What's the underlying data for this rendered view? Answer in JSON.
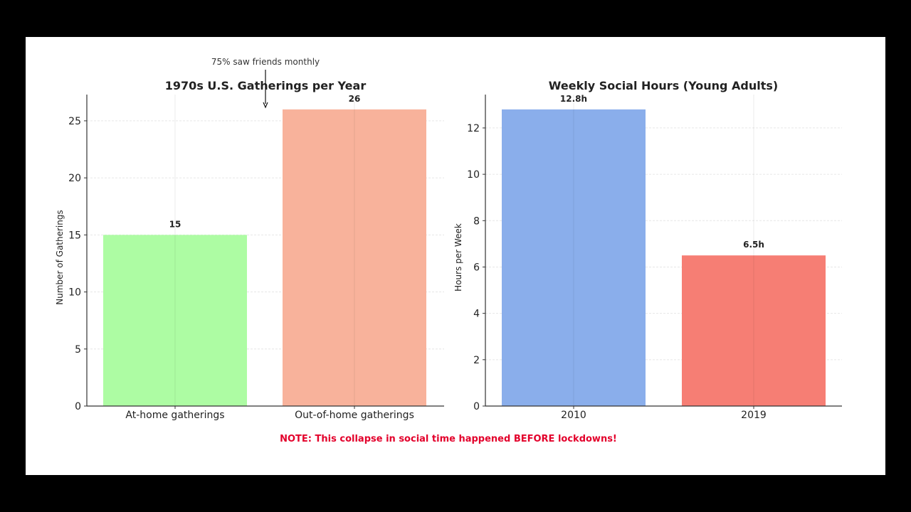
{
  "footer": {
    "note": "NOTE: This collapse in social time happened BEFORE lockdowns!",
    "note_color": "#e3002b"
  },
  "chart_data": [
    {
      "type": "bar",
      "title": "1970s U.S. Gatherings per Year",
      "xlabel": "",
      "ylabel": "Number of Gatherings",
      "categories": [
        "At-home gatherings",
        "Out-of-home gatherings"
      ],
      "values": [
        15,
        26
      ],
      "value_labels": [
        "15",
        "26"
      ],
      "colors": [
        "#adfca3",
        "#f8b29b"
      ],
      "ylim": [
        0,
        27.3
      ],
      "yticks": [
        0,
        5,
        10,
        15,
        20,
        25
      ],
      "grid": true,
      "annotation": {
        "text": "75% saw friends monthly",
        "target_category": 1,
        "arrow": true
      }
    },
    {
      "type": "bar",
      "title": "Weekly Social Hours (Young Adults)",
      "xlabel": "",
      "ylabel": "Hours per Week",
      "categories": [
        "2010",
        "2019"
      ],
      "values": [
        12.8,
        6.5
      ],
      "value_labels": [
        "12.8h",
        "6.5h"
      ],
      "colors": [
        "#8aaeeb",
        "#f67e74"
      ],
      "ylim": [
        0,
        13.44
      ],
      "yticks": [
        0,
        2,
        4,
        6,
        8,
        10,
        12
      ],
      "grid": true
    }
  ]
}
